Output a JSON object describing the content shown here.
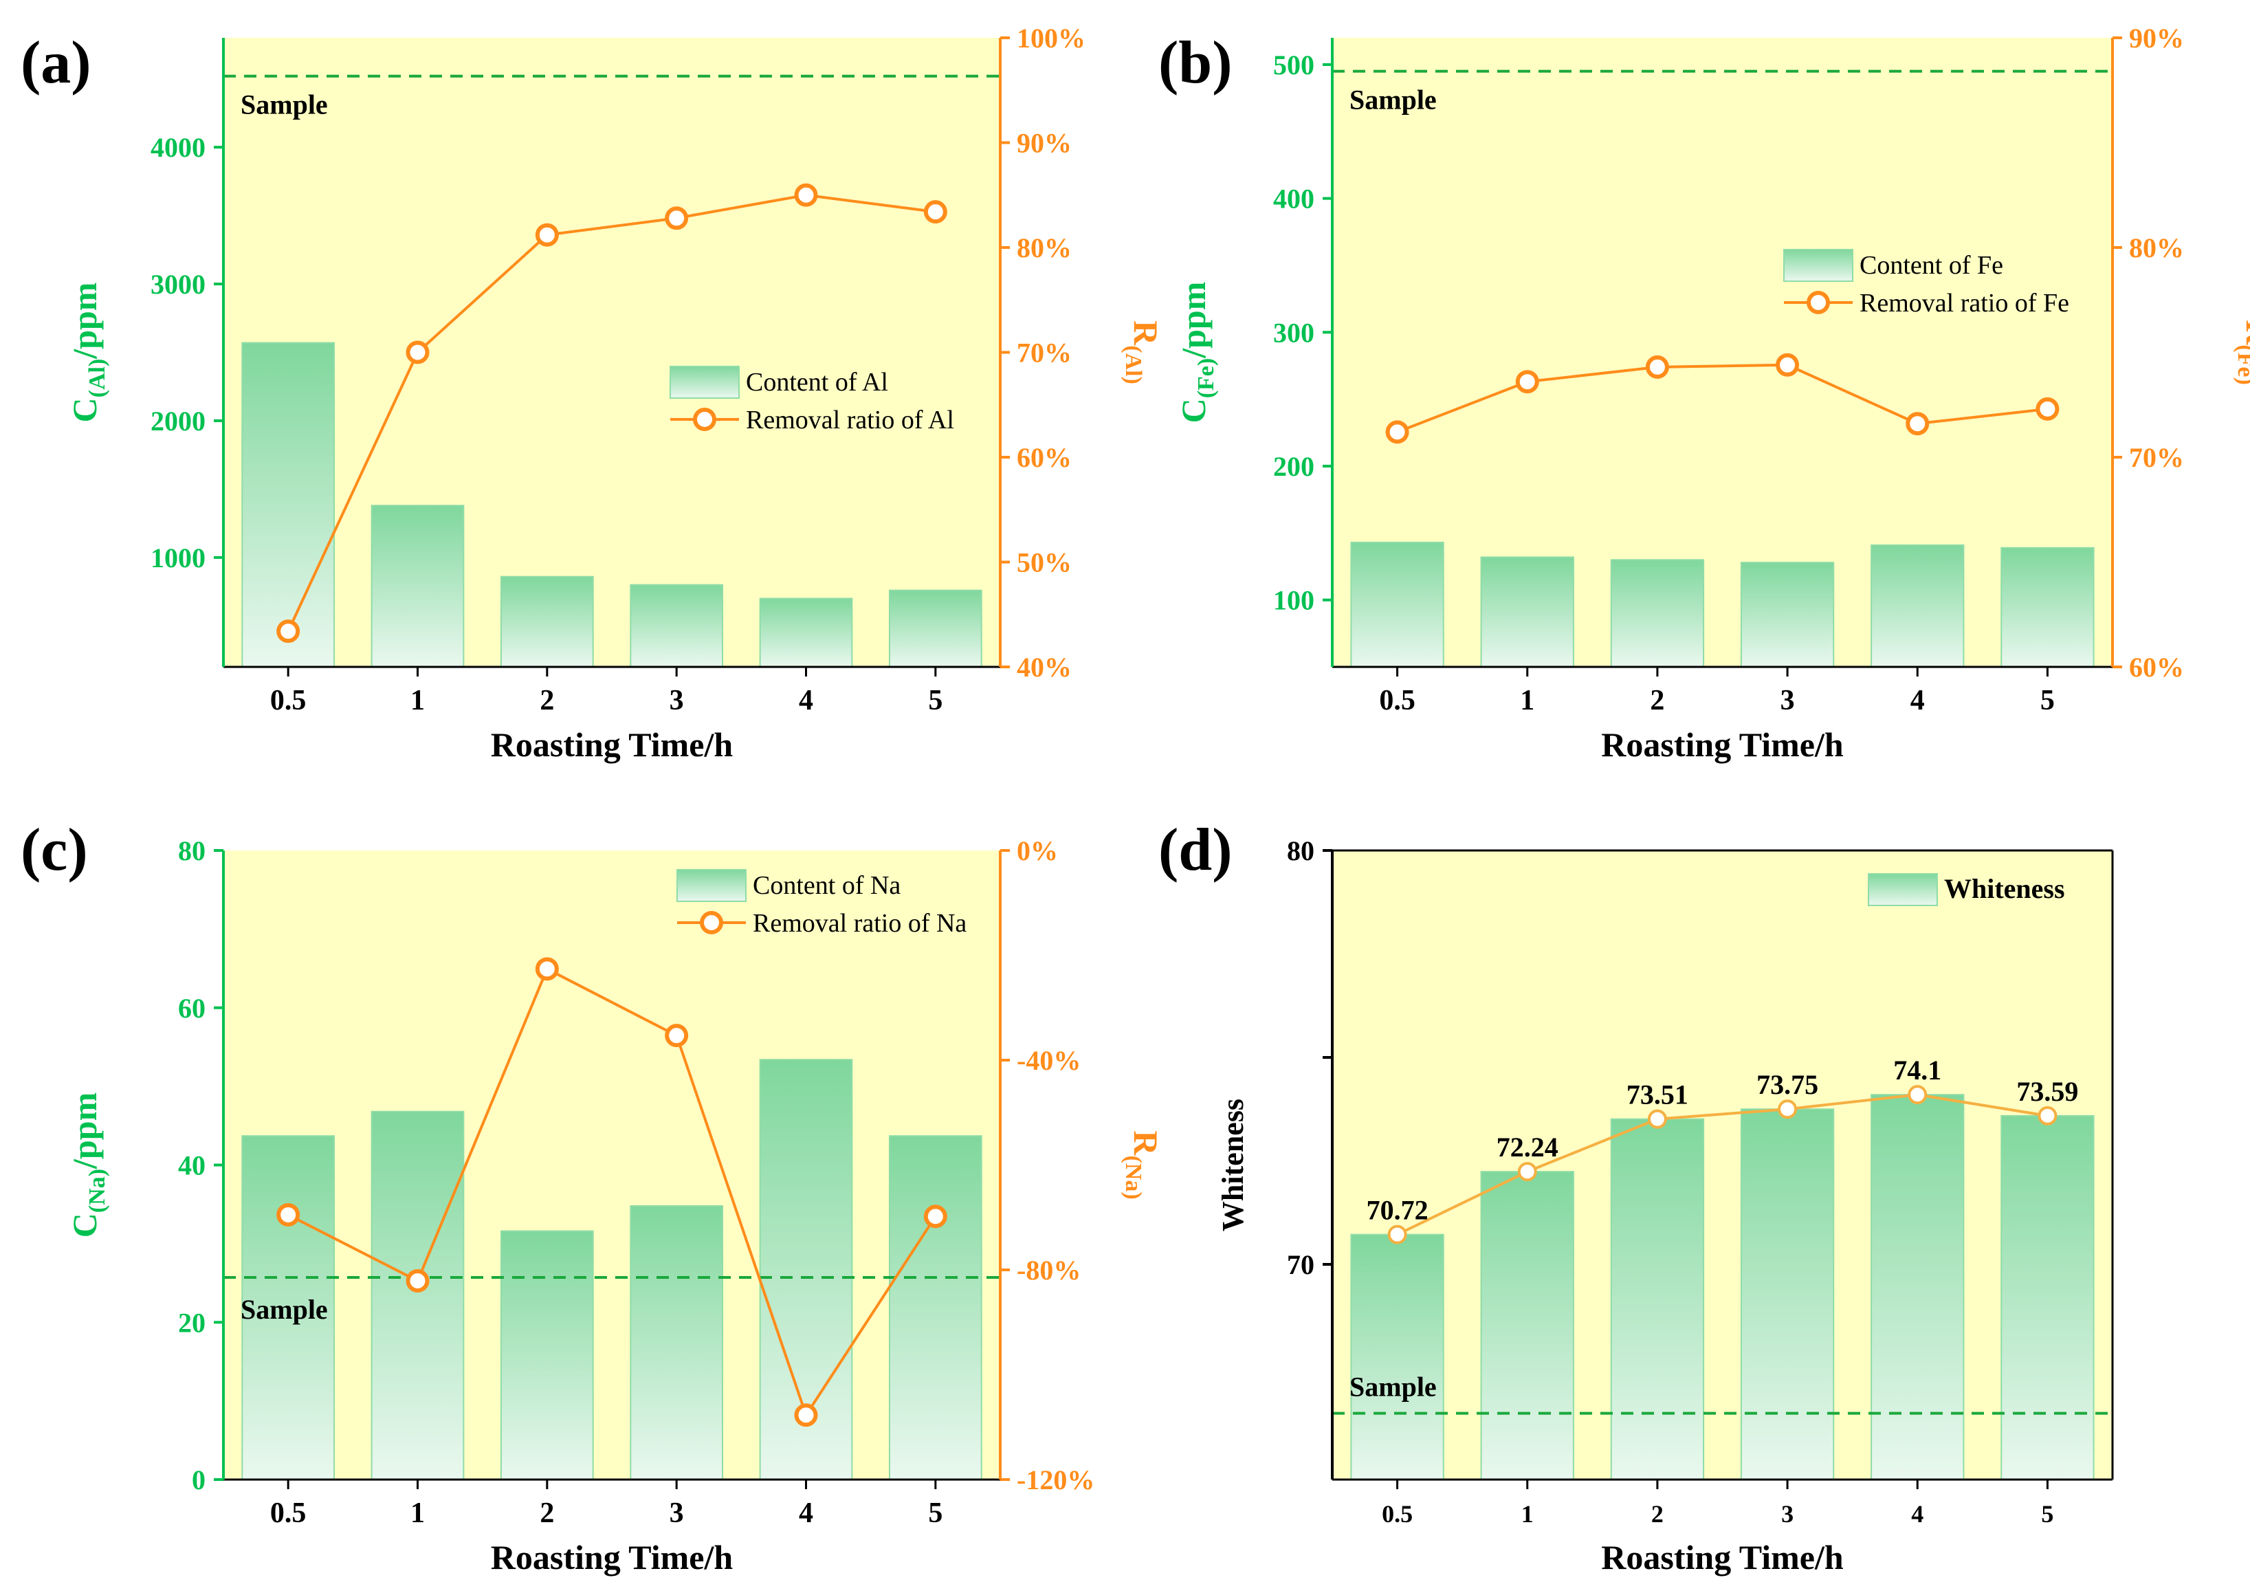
{
  "colors": {
    "plot_bg": "#ffffc4",
    "green": "#00c050",
    "green_dark": "#2aaa4a",
    "bar_top": "#7fd79c",
    "bar_bottom": "#e9f7ee",
    "orange": "#ff8c1a",
    "orange_line": "#f5b042",
    "sample_line": "#1aa83c"
  },
  "chart_data": [
    {
      "panel": "(a)",
      "type": "bar",
      "categories": [
        "0.5",
        "1",
        "2",
        "3",
        "4",
        "5"
      ],
      "xlabel": "Roasting Time/h",
      "ylabel_main": "C",
      "ylabel_sub": "(Al)",
      "ylabel_tail": "/ppm",
      "ylim": [
        200,
        4800
      ],
      "yticks": [
        1000,
        2000,
        3000,
        4000
      ],
      "values": [
        2570,
        1380,
        860,
        800,
        700,
        760
      ],
      "sample_value": 4520,
      "sample_label": "Sample",
      "series_bar_name": "Content of Al",
      "y2": {
        "label_main": "R",
        "label_sub": "(Al)",
        "ylim": [
          40,
          100
        ],
        "ticks": [
          40,
          50,
          60,
          70,
          80,
          90,
          100
        ],
        "tick_labels": [
          "40%",
          "50%",
          "60%",
          "70%",
          "80%",
          "90%",
          "100%"
        ],
        "series_name": "Removal ratio of Al",
        "values": [
          43.4,
          70.0,
          81.2,
          82.8,
          85.0,
          83.4
        ]
      },
      "legend_position": "right"
    },
    {
      "panel": "(b)",
      "type": "bar",
      "categories": [
        "0.5",
        "1",
        "2",
        "3",
        "4",
        "5"
      ],
      "xlabel": "Roasting Time/h",
      "ylabel_main": "C",
      "ylabel_sub": "(Fe)",
      "ylabel_tail": "/ppm",
      "ylim": [
        50,
        520
      ],
      "yticks": [
        100,
        200,
        300,
        400,
        500
      ],
      "values": [
        143,
        132,
        130,
        128,
        141,
        139
      ],
      "sample_value": 495,
      "sample_label": "Sample",
      "series_bar_name": "Content of Fe",
      "y2": {
        "label_main": "R",
        "label_sub": "(Fe)",
        "ylim": [
          60,
          90
        ],
        "ticks": [
          60,
          70,
          80,
          90
        ],
        "tick_labels": [
          "60%",
          "70%",
          "80%",
          "90%"
        ],
        "series_name": "Removal ratio of Fe",
        "values": [
          71.2,
          73.6,
          74.3,
          74.4,
          71.6,
          72.3
        ]
      },
      "legend_position": "right"
    },
    {
      "panel": "(c)",
      "type": "bar",
      "categories": [
        "0.5",
        "1",
        "2",
        "3",
        "4",
        "5"
      ],
      "xlabel": "Roasting Time/h",
      "ylabel_main": "C",
      "ylabel_sub": "(Na)",
      "ylabel_tail": "/ppm",
      "ylim": [
        0,
        80
      ],
      "yticks": [
        0,
        20,
        40,
        60,
        80
      ],
      "values": [
        43.7,
        46.8,
        31.6,
        34.8,
        53.4,
        43.7
      ],
      "sample_value": 25.7,
      "sample_label": "Sample",
      "series_bar_name": "Content of Na",
      "y2": {
        "label_main": "R",
        "label_sub": "(Na)",
        "ylim": [
          -120,
          0
        ],
        "ticks": [
          -120,
          -80,
          -40,
          0
        ],
        "tick_labels": [
          "-120%",
          "-80%",
          "-40%",
          "0%"
        ],
        "series_name": "Removal ratio of Na",
        "values": [
          -69.5,
          -82.1,
          -22.6,
          -35.3,
          -107.7,
          -69.8
        ]
      },
      "legend_position": "top-right"
    },
    {
      "panel": "(d)",
      "type": "bar",
      "categories": [
        "0.5",
        "1",
        "2",
        "3",
        "4",
        "5"
      ],
      "xlabel": "Roasting Time/h",
      "ylabel": "Whiteness",
      "ylim": [
        64.8,
        80
      ],
      "yticks": [
        70,
        80
      ],
      "minor_yticks": [
        75
      ],
      "values": [
        70.72,
        72.24,
        73.51,
        73.75,
        74.1,
        73.59
      ],
      "data_labels": [
        "70.72",
        "72.24",
        "73.51",
        "73.75",
        "74.1",
        "73.59"
      ],
      "sample_value": 66.4,
      "sample_label": "Sample",
      "series_bar_name": "Whiteness",
      "legend_position": "top-right"
    }
  ]
}
